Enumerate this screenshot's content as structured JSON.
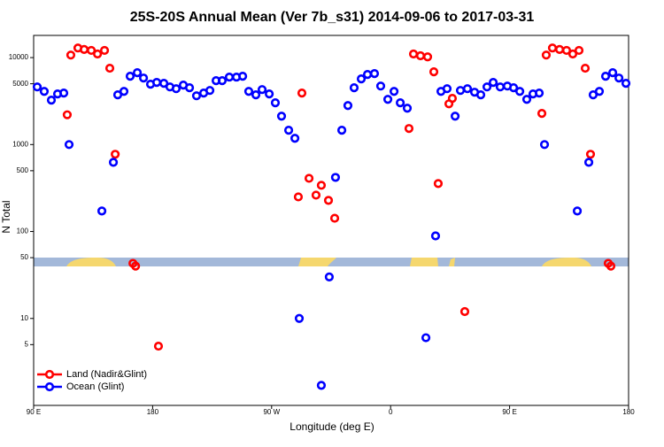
{
  "chart_data": {
    "type": "scatter",
    "title": "25S-20S Annual Mean (Ver 7b_s31)   2014-09-06 to 2017-03-31",
    "x_label": "Longitude (deg E)",
    "y_label": "N Total",
    "xlim": [
      90,
      540
    ],
    "xticks": [
      {
        "value": 90,
        "label": "90 E"
      },
      {
        "value": 180,
        "label": "180"
      },
      {
        "value": 270,
        "label": "90 W"
      },
      {
        "value": 360,
        "label": "0"
      },
      {
        "value": 450,
        "label": "90 E"
      },
      {
        "value": 540,
        "label": "180"
      }
    ],
    "ylim": [
      1,
      18000
    ],
    "log_y": true,
    "yticks": [
      5,
      10,
      50,
      100,
      500,
      1000,
      5000,
      10000
    ],
    "legend": "lower left",
    "series": [
      {
        "name": "Land (Nadir&Glint)",
        "color": "#ff0000",
        "x": [
          115.4,
          118.1,
          123.5,
          128.2,
          133.6,
          138.3,
          143.6,
          147.6,
          151.7,
          165.1,
          167.1,
          184.4,
          290.2,
          292.9,
          298.3,
          303.6,
          307.6,
          313.0,
          317.7,
          373.9,
          377.3,
          382.6,
          388.0,
          392.7,
          396.0,
          404.1,
          406.7,
          416.1,
          474.4,
          477.7,
          482.4,
          487.8,
          493.1,
          497.8,
          502.5,
          507.2,
          511.2,
          524.6,
          526.6
        ],
        "values": [
          2200,
          10700,
          12900,
          12400,
          12100,
          11000,
          12100,
          7550,
          773,
          43,
          40,
          4.8,
          250,
          3910,
          409,
          262,
          340,
          228,
          142,
          1530,
          11000,
          10500,
          10200,
          6870,
          356,
          2940,
          3400,
          12,
          2280,
          10700,
          12900,
          12400,
          12100,
          11000,
          12100,
          7550,
          773,
          43,
          40
        ]
      },
      {
        "name": "Ocean (Glint)",
        "color": "#0000ff",
        "x": [
          92.7,
          98.0,
          103.4,
          108.1,
          112.8,
          116.8,
          141.6,
          150.3,
          153.6,
          158.3,
          163.0,
          168.4,
          173.1,
          178.4,
          183.1,
          188.5,
          193.1,
          197.8,
          203.2,
          207.9,
          213.2,
          218.6,
          223.3,
          228.0,
          232.6,
          238.0,
          243.4,
          248.1,
          252.7,
          258.1,
          262.8,
          268.2,
          272.8,
          277.5,
          282.9,
          287.6,
          290.9,
          307.6,
          313.6,
          318.3,
          323.1,
          327.7,
          332.4,
          337.8,
          342.5,
          347.8,
          352.5,
          357.9,
          362.6,
          367.3,
          372.6,
          386.7,
          394.0,
          398.1,
          402.7,
          408.8,
          412.8,
          418.1,
          423.5,
          428.2,
          432.9,
          437.6,
          442.9,
          448.3,
          453.0,
          457.7,
          463.0,
          467.7,
          472.4,
          476.4,
          501.2,
          509.9,
          513.2,
          517.9,
          522.6,
          528.0,
          532.7,
          538.0
        ],
        "values": [
          4600,
          4090,
          3240,
          3820,
          3910,
          1000,
          172,
          625,
          3730,
          4090,
          6110,
          6710,
          5820,
          4940,
          5180,
          5060,
          4600,
          4390,
          4830,
          4500,
          3640,
          3910,
          4190,
          5430,
          5430,
          5970,
          5970,
          6110,
          4090,
          3730,
          4290,
          3820,
          3020,
          2120,
          1460,
          1180,
          10,
          1.7,
          30,
          419,
          1460,
          2810,
          4500,
          5690,
          6400,
          6550,
          4710,
          3310,
          4090,
          3020,
          2620,
          6,
          89,
          4090,
          4390,
          2120,
          4190,
          4390,
          4000,
          3730,
          4600,
          5180,
          4600,
          4710,
          4500,
          4090,
          3310,
          3820,
          3910,
          1000,
          172,
          625,
          3730,
          4090,
          6110,
          6710,
          5820,
          5060
        ]
      }
    ]
  }
}
